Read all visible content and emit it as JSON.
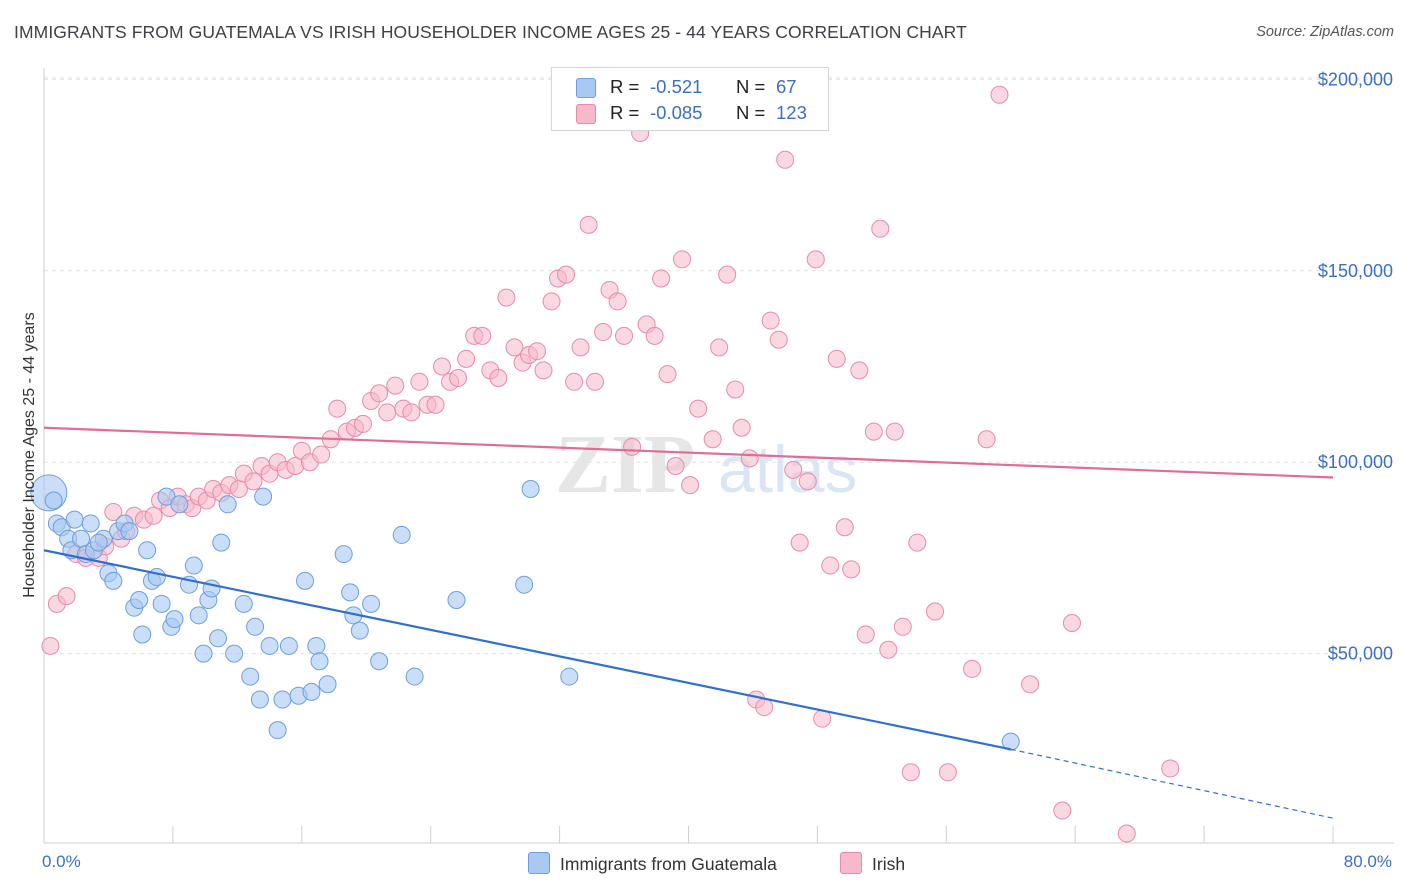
{
  "header": {
    "title": "IMMIGRANTS FROM GUATEMALA VS IRISH HOUSEHOLDER INCOME AGES 25 - 44 YEARS CORRELATION CHART",
    "source": "Source: ZipAtlas.com"
  },
  "watermark": {
    "zip": "ZIP",
    "atlas": "atlas"
  },
  "legend": {
    "rows": [
      {
        "r_label": "R =",
        "r_value": "-0.521",
        "n_label": "N =",
        "n_value": "67",
        "color": "#a9c8f2"
      },
      {
        "r_label": "R =",
        "r_value": "-0.085",
        "n_label": "N =",
        "n_value": "123",
        "color": "#f6b8cb"
      }
    ]
  },
  "bottom_legend": {
    "items": [
      {
        "label": "Immigrants from Guatemala",
        "color": "#a9c8f2"
      },
      {
        "label": "Irish",
        "color": "#f6b8cb"
      }
    ]
  },
  "axes": {
    "ylabel": "Householder Income Ages 25 - 44 years",
    "xmin_label": "0.0%",
    "xmax_label": "80.0%",
    "y_tick_labels": [
      "$200,000",
      "$150,000",
      "$100,000",
      "$50,000"
    ]
  },
  "colors": {
    "blue_fill": "#a9c8f2",
    "blue_stroke": "#6b9ee0",
    "blue_line": "#2f6fd1",
    "pink_fill": "#f6b8cb",
    "pink_stroke": "#e88aa8",
    "pink_line": "#e46b95",
    "tick_text": "#3b6fc7",
    "grid": "#e3e3e3"
  },
  "chart_data": {
    "type": "scatter",
    "title": "IMMIGRANTS FROM GUATEMALA VS IRISH HOUSEHOLDER INCOME AGES 25 - 44 YEARS CORRELATION CHART",
    "xlabel": "",
    "ylabel": "Householder Income Ages 25 - 44 years",
    "xlim": [
      0,
      80
    ],
    "ylim": [
      0,
      205000
    ],
    "y_ticks": [
      50000,
      100000,
      150000,
      200000
    ],
    "grid": true,
    "legend_position": "bottom",
    "series": [
      {
        "name": "Immigrants from Guatemala",
        "color": "#a9c8f2",
        "trend": {
          "x": [
            0,
            60
          ],
          "y": [
            77000,
            25000
          ],
          "dashed_to": [
            80,
            7000
          ]
        },
        "points": [
          [
            0.3,
            92000
          ],
          [
            0.6,
            90000
          ],
          [
            0.8,
            84000
          ],
          [
            1.1,
            83000
          ],
          [
            1.5,
            80000
          ],
          [
            1.7,
            77000
          ],
          [
            1.9,
            85000
          ],
          [
            2.3,
            80000
          ],
          [
            2.6,
            76000
          ],
          [
            2.9,
            84000
          ],
          [
            3.1,
            77000
          ],
          [
            3.7,
            80000
          ],
          [
            4.0,
            71000
          ],
          [
            4.3,
            69000
          ],
          [
            4.6,
            82000
          ],
          [
            5.0,
            84000
          ],
          [
            5.3,
            82000
          ],
          [
            5.6,
            62000
          ],
          [
            5.9,
            64000
          ],
          [
            6.1,
            55000
          ],
          [
            6.4,
            77000
          ],
          [
            6.7,
            69000
          ],
          [
            7.0,
            70000
          ],
          [
            7.3,
            63000
          ],
          [
            7.6,
            91000
          ],
          [
            7.9,
            57000
          ],
          [
            8.1,
            59000
          ],
          [
            8.4,
            89000
          ],
          [
            9.0,
            68000
          ],
          [
            9.3,
            73000
          ],
          [
            9.6,
            60000
          ],
          [
            9.9,
            50000
          ],
          [
            10.2,
            64000
          ],
          [
            10.4,
            67000
          ],
          [
            10.8,
            54000
          ],
          [
            11.0,
            79000
          ],
          [
            11.4,
            89000
          ],
          [
            11.8,
            50000
          ],
          [
            12.4,
            63000
          ],
          [
            12.8,
            44000
          ],
          [
            13.1,
            57000
          ],
          [
            13.4,
            38000
          ],
          [
            13.6,
            91000
          ],
          [
            14.0,
            52000
          ],
          [
            14.5,
            30000
          ],
          [
            14.8,
            38000
          ],
          [
            15.2,
            52000
          ],
          [
            15.8,
            39000
          ],
          [
            16.2,
            69000
          ],
          [
            16.6,
            40000
          ],
          [
            16.9,
            52000
          ],
          [
            17.1,
            48000
          ],
          [
            17.6,
            42000
          ],
          [
            18.6,
            76000
          ],
          [
            19.0,
            66000
          ],
          [
            19.2,
            60000
          ],
          [
            19.6,
            56000
          ],
          [
            20.3,
            63000
          ],
          [
            20.8,
            48000
          ],
          [
            22.2,
            81000
          ],
          [
            23.0,
            44000
          ],
          [
            25.6,
            64000
          ],
          [
            30.2,
            93000
          ],
          [
            29.8,
            68000
          ],
          [
            32.6,
            44000
          ],
          [
            60.0,
            27000
          ],
          [
            3.4,
            79000
          ]
        ]
      },
      {
        "name": "Irish",
        "color": "#f6b8cb",
        "trend": {
          "x": [
            0,
            80
          ],
          "y": [
            109000,
            96000
          ]
        },
        "points": [
          [
            0.4,
            52000
          ],
          [
            0.8,
            63000
          ],
          [
            1.4,
            65000
          ],
          [
            2.0,
            76000
          ],
          [
            2.6,
            75000
          ],
          [
            3.4,
            75000
          ],
          [
            3.8,
            78000
          ],
          [
            4.3,
            87000
          ],
          [
            4.8,
            80000
          ],
          [
            5.1,
            82000
          ],
          [
            5.6,
            86000
          ],
          [
            6.2,
            85000
          ],
          [
            6.8,
            86000
          ],
          [
            7.2,
            90000
          ],
          [
            7.8,
            88000
          ],
          [
            8.3,
            91000
          ],
          [
            8.8,
            89000
          ],
          [
            9.2,
            88000
          ],
          [
            9.6,
            91000
          ],
          [
            10.1,
            90000
          ],
          [
            10.5,
            93000
          ],
          [
            11.0,
            92000
          ],
          [
            11.5,
            94000
          ],
          [
            12.1,
            93000
          ],
          [
            12.4,
            97000
          ],
          [
            13.0,
            95000
          ],
          [
            13.5,
            99000
          ],
          [
            14.0,
            97000
          ],
          [
            14.5,
            100000
          ],
          [
            15.0,
            98000
          ],
          [
            15.6,
            99000
          ],
          [
            16.0,
            103000
          ],
          [
            16.5,
            100000
          ],
          [
            17.2,
            102000
          ],
          [
            17.8,
            106000
          ],
          [
            18.2,
            114000
          ],
          [
            18.8,
            108000
          ],
          [
            19.3,
            109000
          ],
          [
            19.8,
            110000
          ],
          [
            20.3,
            116000
          ],
          [
            20.8,
            118000
          ],
          [
            21.3,
            113000
          ],
          [
            21.8,
            120000
          ],
          [
            22.3,
            114000
          ],
          [
            22.8,
            113000
          ],
          [
            23.3,
            121000
          ],
          [
            23.8,
            115000
          ],
          [
            24.3,
            115000
          ],
          [
            24.7,
            125000
          ],
          [
            25.2,
            121000
          ],
          [
            25.7,
            122000
          ],
          [
            26.2,
            127000
          ],
          [
            26.7,
            133000
          ],
          [
            27.2,
            133000
          ],
          [
            27.7,
            124000
          ],
          [
            28.2,
            122000
          ],
          [
            28.7,
            143000
          ],
          [
            29.2,
            130000
          ],
          [
            29.7,
            126000
          ],
          [
            30.1,
            128000
          ],
          [
            30.6,
            129000
          ],
          [
            31.0,
            124000
          ],
          [
            31.5,
            142000
          ],
          [
            31.9,
            148000
          ],
          [
            32.4,
            149000
          ],
          [
            32.9,
            121000
          ],
          [
            33.3,
            130000
          ],
          [
            33.8,
            162000
          ],
          [
            34.2,
            121000
          ],
          [
            34.7,
            134000
          ],
          [
            35.1,
            145000
          ],
          [
            35.6,
            142000
          ],
          [
            36.0,
            133000
          ],
          [
            36.5,
            104000
          ],
          [
            37.0,
            186000
          ],
          [
            37.4,
            136000
          ],
          [
            37.9,
            133000
          ],
          [
            38.3,
            148000
          ],
          [
            38.7,
            123000
          ],
          [
            39.2,
            99000
          ],
          [
            39.6,
            153000
          ],
          [
            40.1,
            94000
          ],
          [
            40.6,
            114000
          ],
          [
            41.0,
            190000
          ],
          [
            41.5,
            106000
          ],
          [
            41.9,
            130000
          ],
          [
            42.4,
            149000
          ],
          [
            42.9,
            119000
          ],
          [
            43.3,
            109000
          ],
          [
            43.8,
            101000
          ],
          [
            44.2,
            38000
          ],
          [
            44.7,
            36000
          ],
          [
            45.1,
            137000
          ],
          [
            45.6,
            132000
          ],
          [
            46.0,
            179000
          ],
          [
            46.5,
            98000
          ],
          [
            46.9,
            79000
          ],
          [
            47.4,
            95000
          ],
          [
            47.9,
            153000
          ],
          [
            48.3,
            33000
          ],
          [
            48.8,
            73000
          ],
          [
            49.2,
            127000
          ],
          [
            49.7,
            83000
          ],
          [
            50.1,
            72000
          ],
          [
            50.6,
            124000
          ],
          [
            51.0,
            55000
          ],
          [
            51.5,
            108000
          ],
          [
            51.9,
            161000
          ],
          [
            52.4,
            51000
          ],
          [
            52.8,
            108000
          ],
          [
            53.3,
            57000
          ],
          [
            53.8,
            19000
          ],
          [
            54.2,
            79000
          ],
          [
            55.3,
            61000
          ],
          [
            56.1,
            19000
          ],
          [
            57.6,
            46000
          ],
          [
            58.5,
            106000
          ],
          [
            59.3,
            196000
          ],
          [
            61.2,
            42000
          ],
          [
            63.2,
            9000
          ],
          [
            63.8,
            58000
          ],
          [
            67.2,
            3000
          ],
          [
            69.9,
            20000
          ]
        ]
      }
    ]
  }
}
